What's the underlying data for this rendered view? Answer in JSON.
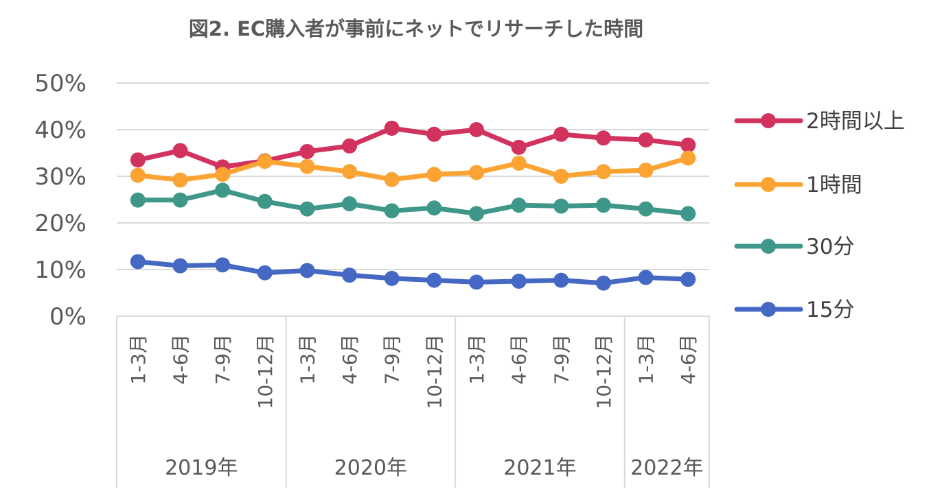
{
  "chart_data": {
    "type": "line",
    "title": "図2. EC購入者が事前にネットでリサーチした時間",
    "xlabel": "",
    "ylabel": "",
    "ylim": [
      0,
      50
    ],
    "yticks": [
      "0%",
      "10%",
      "20%",
      "30%",
      "40%",
      "50%"
    ],
    "grid": true,
    "legend_position": "right",
    "categories": [
      "1-3月",
      "4-6月",
      "7-9月",
      "10-12月",
      "1-3月",
      "4-6月",
      "7-9月",
      "10-12月",
      "1-3月",
      "4-6月",
      "7-9月",
      "10-12月",
      "1-3月",
      "4-6月"
    ],
    "category_groups": [
      {
        "label": "2019年",
        "count": 4
      },
      {
        "label": "2020年",
        "count": 4
      },
      {
        "label": "2021年",
        "count": 4
      },
      {
        "label": "2022年",
        "count": 2
      }
    ],
    "series": [
      {
        "name": "2時間以上",
        "color": "#D1325E",
        "values": [
          33.5,
          35.5,
          32.0,
          33.3,
          35.3,
          36.5,
          40.3,
          39.0,
          40.0,
          36.2,
          39.0,
          38.2,
          37.8,
          36.7
        ]
      },
      {
        "name": "1時間",
        "color": "#FBA333",
        "values": [
          30.2,
          29.2,
          30.4,
          33.2,
          32.1,
          31.0,
          29.3,
          30.4,
          30.8,
          32.8,
          30.0,
          31.0,
          31.3,
          33.9
        ]
      },
      {
        "name": "30分",
        "color": "#3F978A",
        "values": [
          24.9,
          24.9,
          27.0,
          24.6,
          23.0,
          24.1,
          22.6,
          23.2,
          22.0,
          23.8,
          23.6,
          23.8,
          23.0,
          22.0
        ]
      },
      {
        "name": "15分",
        "color": "#4468C4",
        "values": [
          11.7,
          10.8,
          11.0,
          9.3,
          9.8,
          8.8,
          8.1,
          7.7,
          7.3,
          7.5,
          7.7,
          7.1,
          8.3,
          7.9
        ]
      }
    ]
  }
}
